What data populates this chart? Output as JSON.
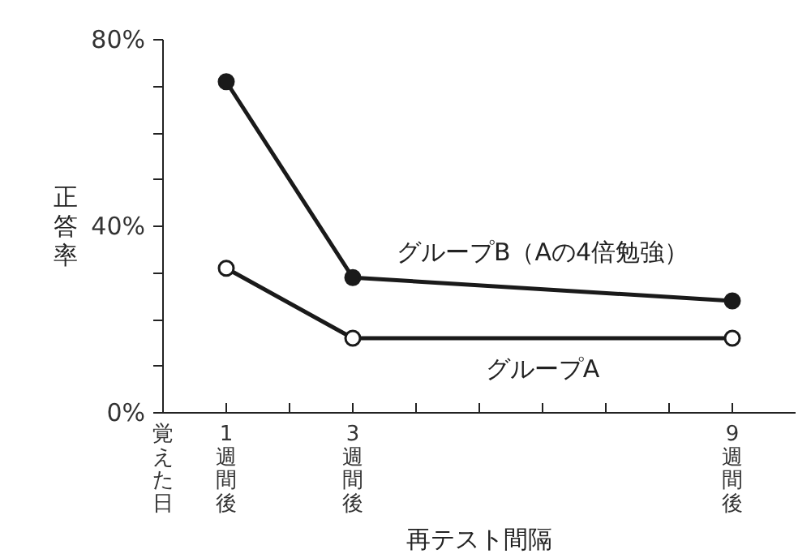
{
  "chart_data": {
    "type": "line",
    "xlabel": "再テスト間隔",
    "ylabel": "正答率",
    "xlim": [
      0,
      10
    ],
    "ylim": [
      0,
      80
    ],
    "xticks": [
      {
        "value": 0,
        "label": "覚えた日"
      },
      {
        "value": 1,
        "label": "1週間後"
      },
      {
        "value": 2,
        "label": null
      },
      {
        "value": 3,
        "label": "3週間後"
      },
      {
        "value": 4,
        "label": null
      },
      {
        "value": 5,
        "label": null
      },
      {
        "value": 6,
        "label": null
      },
      {
        "value": 7,
        "label": null
      },
      {
        "value": 8,
        "label": null
      },
      {
        "value": 9,
        "label": "9週間後"
      }
    ],
    "yticks": [
      {
        "value": 0,
        "label": "0%"
      },
      {
        "value": 10,
        "label": null
      },
      {
        "value": 20,
        "label": null
      },
      {
        "value": 30,
        "label": null
      },
      {
        "value": 40,
        "label": "40%"
      },
      {
        "value": 50,
        "label": null
      },
      {
        "value": 60,
        "label": null
      },
      {
        "value": 70,
        "label": null
      },
      {
        "value": 80,
        "label": "80%"
      }
    ],
    "x": [
      1,
      3,
      9
    ],
    "series": [
      {
        "name": "グループB（Aの4倍勉強）",
        "color": "#1a1a1a",
        "values": [
          71,
          29,
          24
        ]
      },
      {
        "name": "グループA",
        "color": "#1a1a1a",
        "values": [
          31,
          16,
          16
        ]
      }
    ],
    "marker": "circle",
    "line_style": "solid",
    "grid": false
  }
}
